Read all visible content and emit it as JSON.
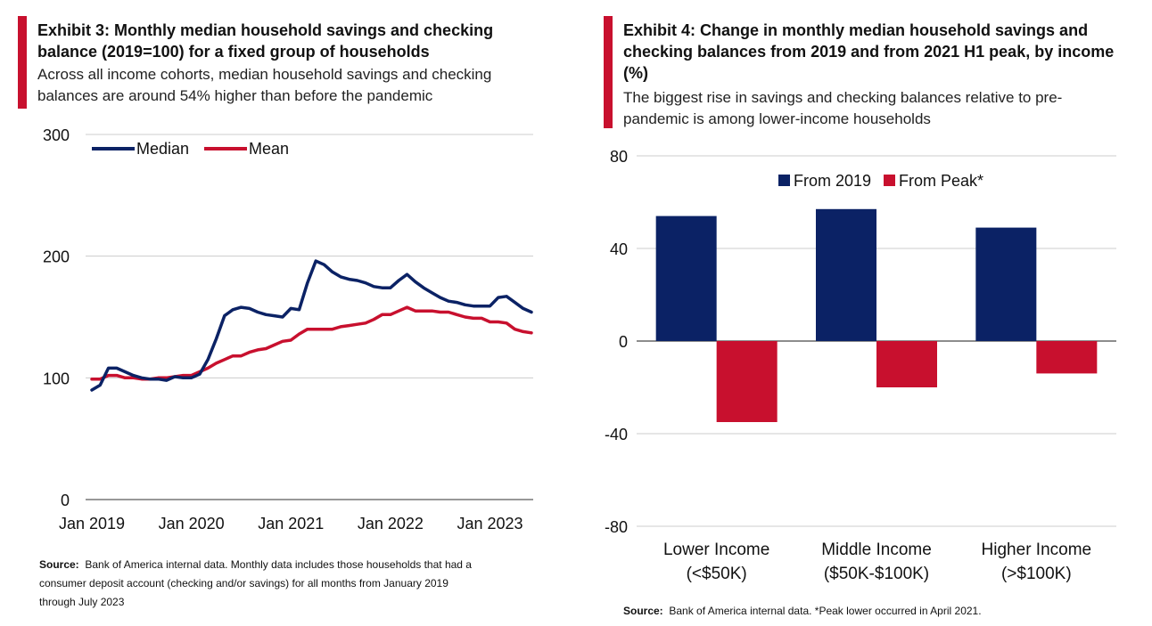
{
  "exhibit3": {
    "title_line1": "Exhibit 3: Monthly median household savings and checking",
    "title_line2": "balance (2019=100)  for a fixed group of households",
    "subtitle_line1": "Across all income cohorts, median household savings and checking",
    "subtitle_line2": "balances are around 54% higher than before the pandemic",
    "source_label": "Source:",
    "source_line1": "Bank of America internal data. Monthly data includes those households  that had a",
    "source_line2": "consumer  deposit account  (checking  and/or savings) for all months from January 2019",
    "source_line3": "through July 2023"
  },
  "exhibit4": {
    "title_line1": "Exhibit 4: Change in monthly median household savings and",
    "title_line2": "checking balances from 2019 and from 2021 H1 peak, by income",
    "title_line3": "(%)",
    "subtitle_line1": "The biggest rise in savings and checking balances relative to pre-",
    "subtitle_line2": "pandemic is among lower-income households",
    "source_label": "Source:",
    "source_text": "Bank of America internal data. *Peak lower occurred in April 2021."
  },
  "colors": {
    "navy": "#0b2265",
    "red": "#c8102e",
    "grid": "#cccccc",
    "accent": "#c8102e"
  },
  "chart_data": [
    {
      "type": "line",
      "title": "Exhibit 3: Monthly median household savings and checking balance (2019=100)  for a fixed group of households",
      "ylim": [
        0,
        300
      ],
      "yticks": [
        "0",
        "100",
        "200",
        "300"
      ],
      "xticks": [
        "Jan 2019",
        "Jan 2020",
        "Jan 2021",
        "Jan 2022",
        "Jan 2023"
      ],
      "xtick_index": [
        0,
        12,
        24,
        36,
        48
      ],
      "grid": true,
      "legend_position": "top-left",
      "series": [
        {
          "name": "Median",
          "color": "#0b2265",
          "values": [
            90,
            94,
            108,
            108,
            105,
            102,
            100,
            99,
            99,
            98,
            101,
            100,
            100,
            103,
            115,
            132,
            151,
            156,
            158,
            157,
            154,
            152,
            151,
            150,
            157,
            156,
            178,
            196,
            193,
            187,
            183,
            181,
            180,
            178,
            175,
            174,
            174,
            180,
            185,
            179,
            174,
            170,
            166,
            163,
            162,
            160,
            159,
            159,
            159,
            166,
            167,
            162,
            157,
            154
          ]
        },
        {
          "name": "Mean",
          "color": "#c8102e",
          "values": [
            99,
            99,
            102,
            102,
            100,
            100,
            99,
            99,
            100,
            100,
            101,
            102,
            102,
            105,
            108,
            112,
            115,
            118,
            118,
            121,
            123,
            124,
            127,
            130,
            131,
            136,
            140,
            140,
            140,
            140,
            142,
            143,
            144,
            145,
            148,
            152,
            152,
            155,
            158,
            155,
            155,
            155,
            154,
            154,
            152,
            150,
            149,
            149,
            146,
            146,
            145,
            140,
            138,
            137
          ]
        }
      ]
    },
    {
      "type": "bar",
      "title": "Exhibit 4: Change in monthly median household savings and checking balances from 2019 and from 2021 H1 peak, by income (%)",
      "ylim": [
        -80,
        80
      ],
      "yticks": [
        "80",
        "40",
        "0",
        "-40",
        "-80"
      ],
      "categories": [
        [
          "Lower Income",
          "(<$50K)"
        ],
        [
          "Middle Income",
          "($50K-$100K)"
        ],
        [
          "Higher Income",
          "(>$100K)"
        ]
      ],
      "grid": true,
      "legend_position": "top-center",
      "series": [
        {
          "name": "From 2019",
          "color": "#0b2265",
          "values": [
            54,
            57,
            49
          ]
        },
        {
          "name": "From Peak*",
          "color": "#c8102e",
          "values": [
            -35,
            -20,
            -14
          ]
        }
      ]
    }
  ]
}
